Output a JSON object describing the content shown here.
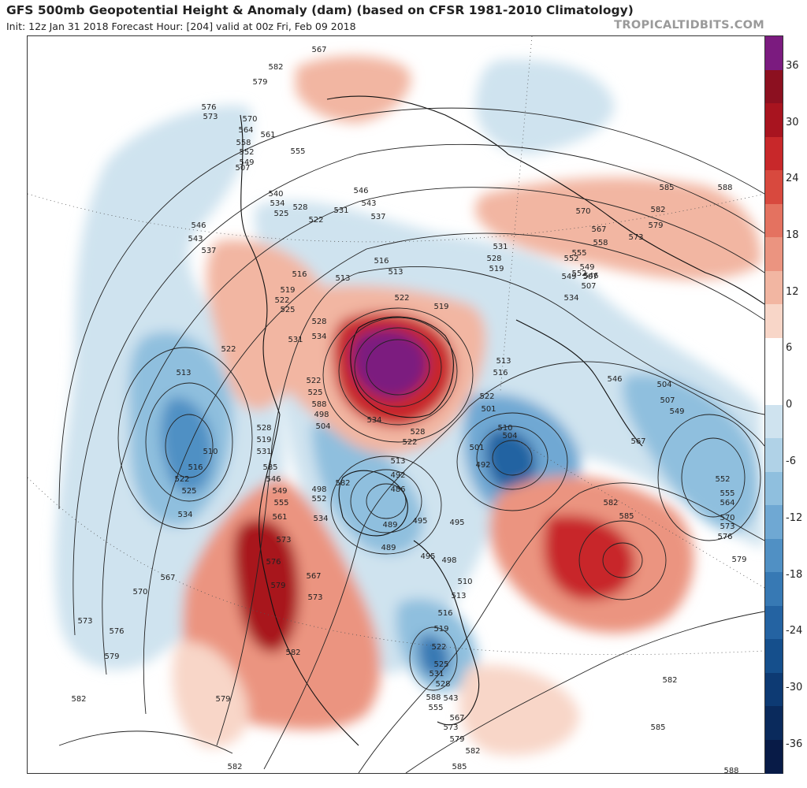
{
  "header": {
    "title": "GFS 500mb Geopotential Height & Anomaly (dam) (based on CFSR 1981-2010 Climatology)",
    "subtitle": "Init: 12z Jan 31 2018   Forecast Hour: [204]   valid at 00z Fri, Feb 09 2018",
    "brand": "TROPICALTIDBITS.COM"
  },
  "colorbar": {
    "ticks": [
      "36",
      "30",
      "24",
      "18",
      "12",
      "6",
      "0",
      "-6",
      "-12",
      "-18",
      "-24",
      "-30",
      "-36"
    ],
    "colors": [
      "#7b1b7f",
      "#8c1020",
      "#a8141f",
      "#c8282a",
      "#d8493e",
      "#e47260",
      "#eb9480",
      "#f2b6a2",
      "#f8d6c8",
      "#ffffff",
      "#ffffff",
      "#cfe3ef",
      "#b0d2e7",
      "#8fbfde",
      "#6fa8d3",
      "#5090c4",
      "#3779b4",
      "#2463a2",
      "#154f8c",
      "#0d3a73",
      "#0a2a5c",
      "#081b47"
    ]
  },
  "contour_labels": [
    "513",
    "510",
    "516",
    "522",
    "525",
    "534",
    "570",
    "573",
    "576",
    "579",
    "582",
    "585",
    "588",
    "546",
    "543",
    "537",
    "531",
    "528",
    "519",
    "540",
    "498",
    "492",
    "489",
    "486",
    "495",
    "501",
    "504",
    "507",
    "549",
    "552",
    "555",
    "558",
    "561",
    "564",
    "567"
  ]
}
